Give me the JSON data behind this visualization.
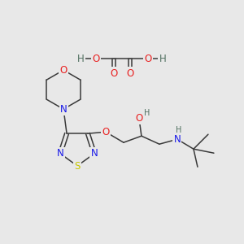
{
  "bg_color": "#e8e8e8",
  "bond_color": "#3a3a3a",
  "atom_colors": {
    "O": "#e82020",
    "N": "#1818e8",
    "S": "#c8c800",
    "H": "#507060",
    "C": "#3a3a3a"
  },
  "lw": 1.1,
  "fs": 8.5,
  "fs_s": 7.0,
  "doff": 0.008
}
